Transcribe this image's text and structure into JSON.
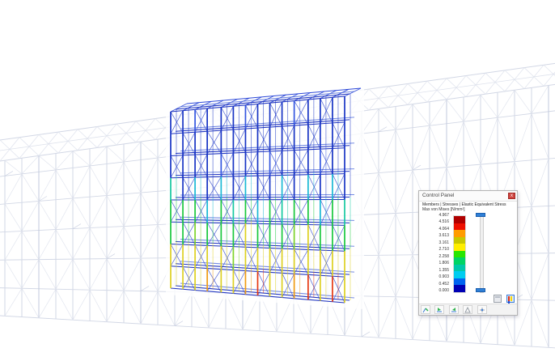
{
  "panel": {
    "title": "Control Panel",
    "close_label": "x",
    "result_line1": "Members | Stresses | Elastic Equivalent Stress",
    "result_line2": "Max von Mises [N/mm²]",
    "legend": {
      "values": [
        "4.967",
        "4.516",
        "4.064",
        "3.613",
        "3.161",
        "2.710",
        "2.258",
        "1.806",
        "1.355",
        "0.903",
        "0.452",
        "0.000"
      ],
      "band_colors": [
        "#b00000",
        "#ee1000",
        "#ff9c00",
        "#c8c800",
        "#ffee00",
        "#28e600",
        "#00d464",
        "#00c8aa",
        "#00cdf0",
        "#0064f0",
        "#0000b4"
      ]
    }
  },
  "scene": {
    "background_color": "#ffffff",
    "gray_structure": {
      "line_color": "#c7cedf",
      "light_color": "#d6dbe8",
      "dark_color": "#b3bcd4"
    },
    "block": {
      "palette": {
        "B": "#1733c4",
        "b": "#3355e0",
        "N": "#0d1fa0",
        "C": "#19b9d4",
        "T": "#14c8a0",
        "G": "#18c83c",
        "g": "#7ed32a",
        "Y": "#ddd020",
        "O": "#f09c14",
        "R": "#e63812"
      },
      "beam_color": "#2136c0",
      "beam_light": "#5570dd",
      "brace_color": "#3148cc",
      "roof_color": "#2d49d8",
      "columns": [
        {
          "f": 0.0,
          "profile": "BBBTGGYY"
        },
        {
          "f": 0.07,
          "profile": "BBBBGGYY"
        },
        {
          "f": 0.14,
          "profile": "bBBCGgYY"
        },
        {
          "f": 0.21,
          "profile": "BBBBCGYO"
        },
        {
          "f": 0.29,
          "profile": "BBbCGGYY"
        },
        {
          "f": 0.36,
          "profile": "BBBBTGgY"
        },
        {
          "f": 0.43,
          "profile": "bBBCGYYO"
        },
        {
          "f": 0.5,
          "profile": "BBBBCGYR"
        },
        {
          "f": 0.57,
          "profile": "BBbBGGYY"
        },
        {
          "f": 0.64,
          "profile": "BBBCTGYY"
        },
        {
          "f": 0.71,
          "profile": "bBBBGgYO"
        },
        {
          "f": 0.79,
          "profile": "BBBCGYYR"
        },
        {
          "f": 0.86,
          "profile": "BBbBCGYY"
        },
        {
          "f": 0.93,
          "profile": "BBBCGGYR"
        },
        {
          "f": 1.0,
          "profile": "BBBBTGYY"
        }
      ]
    }
  }
}
